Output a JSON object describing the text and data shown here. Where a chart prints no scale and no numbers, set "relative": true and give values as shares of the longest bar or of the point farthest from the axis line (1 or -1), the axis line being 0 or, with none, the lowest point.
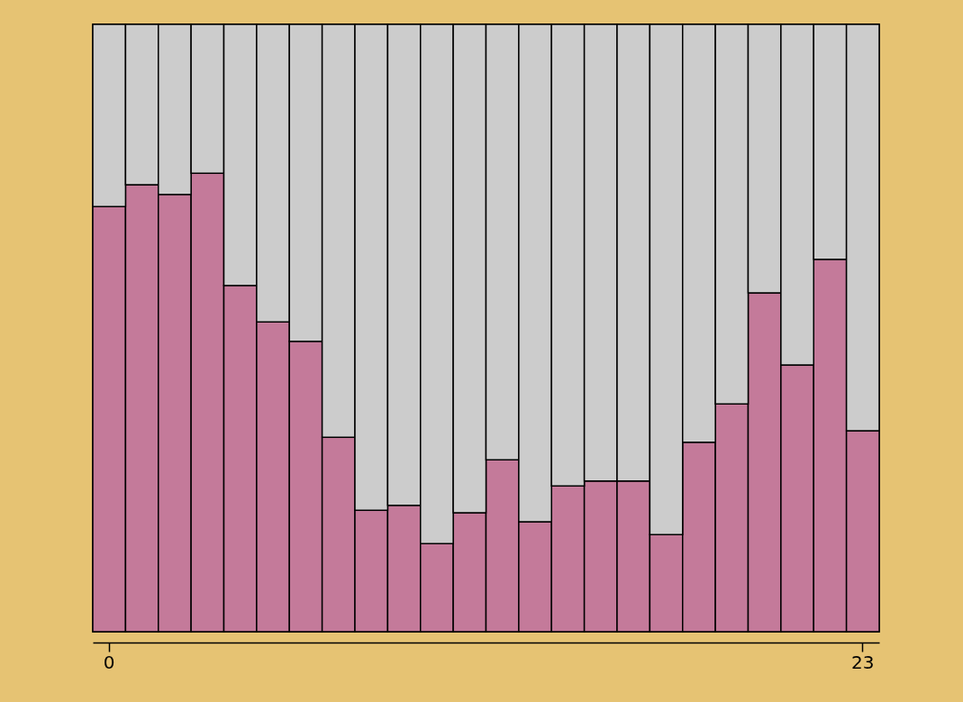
{
  "chart_data": {
    "type": "bar",
    "stacked": true,
    "relative": true,
    "legend": false,
    "grid": false,
    "categories": [
      "0",
      null,
      null,
      null,
      null,
      null,
      null,
      null,
      null,
      null,
      null,
      null,
      null,
      null,
      null,
      null,
      null,
      null,
      null,
      null,
      null,
      null,
      null,
      "23"
    ],
    "series": [
      {
        "color": "#c47a9a",
        "values": [
          0.7,
          0.736,
          0.72,
          0.755,
          0.57,
          0.51,
          0.478,
          0.32,
          0.2,
          0.208,
          0.145,
          0.196,
          0.283,
          0.181,
          0.24,
          0.248,
          0.248,
          0.16,
          0.312,
          0.375,
          0.558,
          0.439,
          0.613,
          0.331
        ]
      },
      {
        "color": "#cccccc",
        "values": [
          0.3,
          0.264,
          0.28,
          0.245,
          0.43,
          0.49,
          0.522,
          0.68,
          0.8,
          0.792,
          0.855,
          0.804,
          0.717,
          0.819,
          0.76,
          0.752,
          0.752,
          0.84,
          0.688,
          0.625,
          0.442,
          0.561,
          0.387,
          0.669
        ]
      }
    ]
  }
}
